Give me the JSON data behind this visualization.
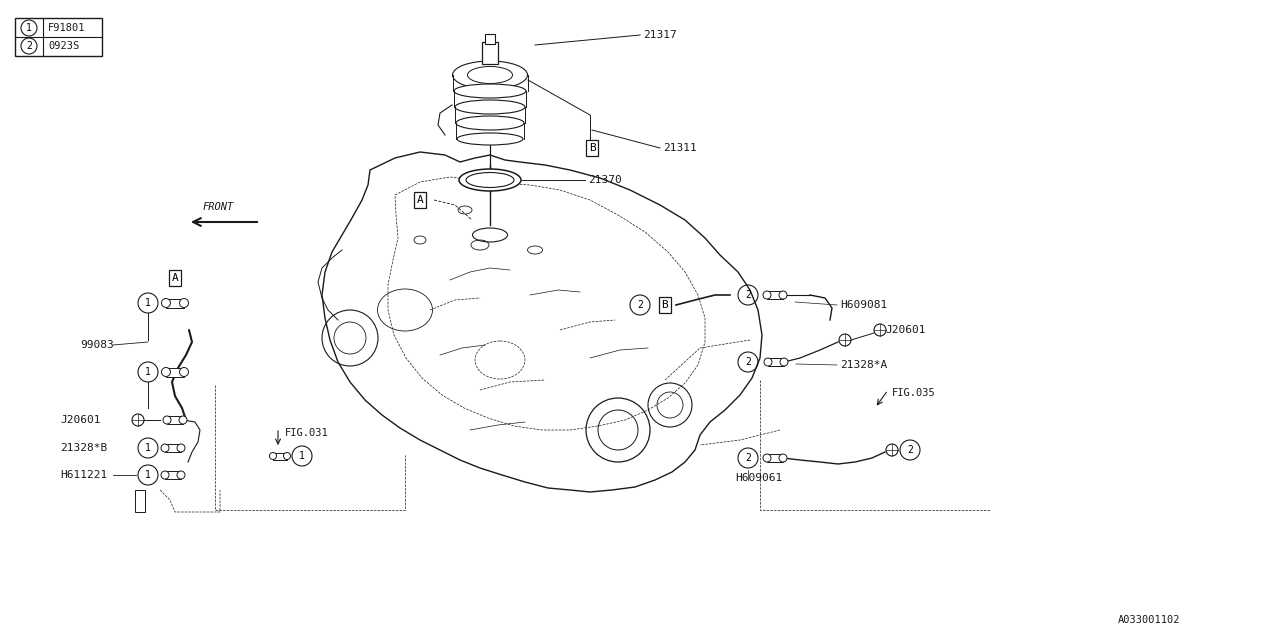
{
  "bg_color": "#ffffff",
  "line_color": "#1a1a1a",
  "fig_width": 12.8,
  "fig_height": 6.4,
  "title_code": "A033001102",
  "legend": [
    {
      "num": "1",
      "code": "F91801"
    },
    {
      "num": "2",
      "code": "0923S"
    }
  ]
}
